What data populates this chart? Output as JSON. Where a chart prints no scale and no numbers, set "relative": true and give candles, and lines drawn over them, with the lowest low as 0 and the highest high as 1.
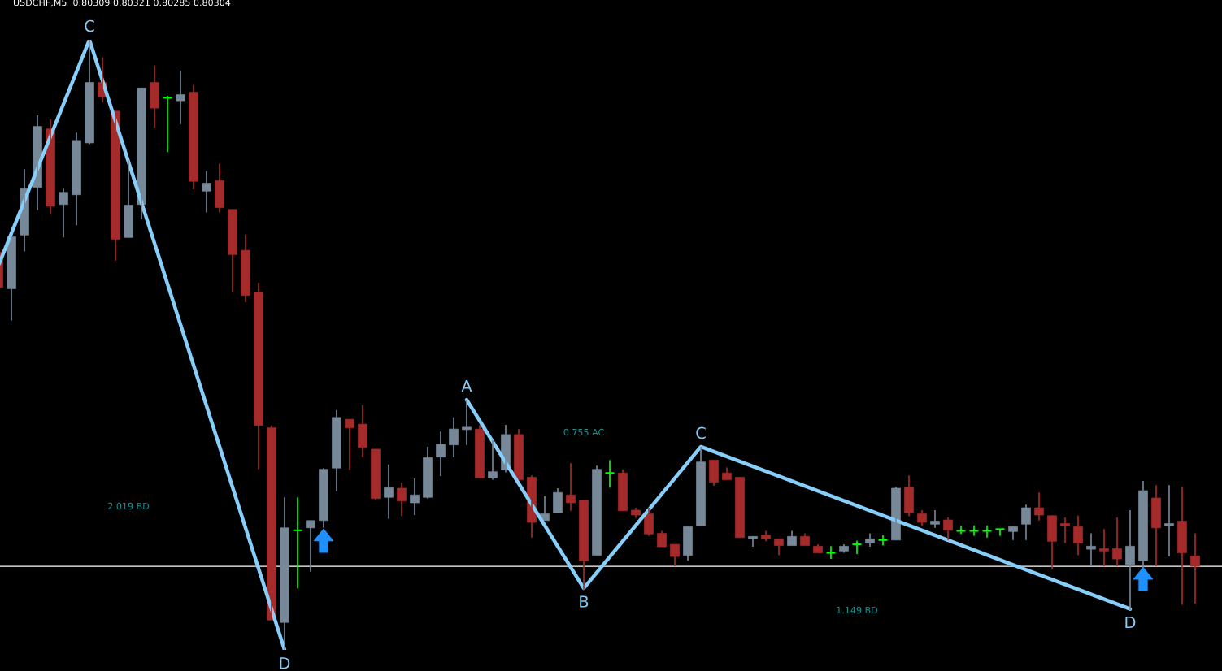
{
  "chart_data": {
    "type": "candlestick",
    "title": "USDCHF,M5  0.80309 0.80321 0.80285 0.80304",
    "relative": true,
    "categories": [
      null,
      null,
      null,
      null,
      null,
      null,
      null,
      null,
      null,
      null,
      null,
      null,
      null,
      null,
      null,
      null,
      null,
      null,
      null,
      null,
      null,
      null,
      null,
      null,
      null,
      null,
      null,
      null,
      null,
      null,
      null,
      null,
      null,
      null,
      null,
      null,
      null,
      null,
      null,
      null,
      null,
      null,
      null,
      null,
      null,
      null,
      null,
      null,
      null,
      null,
      null,
      null,
      null,
      null,
      null,
      null,
      null,
      null,
      null,
      null,
      null,
      null,
      null,
      null,
      null,
      null,
      null,
      null,
      null,
      null,
      null,
      null,
      null,
      null,
      null,
      null,
      null,
      null,
      null,
      null,
      null,
      null,
      null,
      null,
      null,
      null,
      null,
      null,
      null,
      null,
      null,
      null,
      null
    ],
    "ohlc": [
      [
        0.652,
        0.652,
        0.594,
        0.594
      ],
      [
        0.592,
        0.677,
        0.54,
        0.677
      ],
      [
        0.68,
        0.788,
        0.653,
        0.756
      ],
      [
        0.758,
        0.876,
        0.721,
        0.858
      ],
      [
        0.854,
        0.87,
        0.714,
        0.727
      ],
      [
        0.73,
        0.756,
        0.676,
        0.75
      ],
      [
        0.746,
        0.848,
        0.696,
        0.835
      ],
      [
        0.831,
        1.0,
        0.829,
        0.93
      ],
      [
        0.93,
        0.971,
        0.897,
        0.906
      ],
      [
        0.883,
        0.883,
        0.638,
        0.673
      ],
      [
        0.676,
        0.802,
        0.676,
        0.729
      ],
      [
        0.73,
        0.921,
        0.706,
        0.921
      ],
      [
        0.93,
        0.958,
        0.856,
        0.888
      ],
      [
        0.905,
        0.908,
        0.816,
        0.905
      ],
      [
        0.9,
        0.949,
        0.862,
        0.91
      ],
      [
        0.914,
        0.926,
        0.755,
        0.768
      ],
      [
        0.752,
        0.785,
        0.717,
        0.765
      ],
      [
        0.769,
        0.797,
        0.717,
        0.725
      ],
      [
        0.722,
        0.722,
        0.586,
        0.648
      ],
      [
        0.655,
        0.681,
        0.57,
        0.581
      ],
      [
        0.586,
        0.602,
        0.296,
        0.368
      ],
      [
        0.364,
        0.368,
        0.049,
        0.049
      ],
      [
        0.045,
        0.25,
        0.0,
        0.2
      ],
      [
        0.196,
        0.25,
        0.101,
        0.196
      ],
      [
        0.2,
        0.212,
        0.128,
        0.212
      ],
      [
        0.212,
        0.298,
        0.2,
        0.296
      ],
      [
        0.298,
        0.393,
        0.26,
        0.381
      ],
      [
        0.378,
        0.378,
        0.295,
        0.364
      ],
      [
        0.37,
        0.401,
        0.316,
        0.332
      ],
      [
        0.329,
        0.329,
        0.245,
        0.248
      ],
      [
        0.25,
        0.304,
        0.215,
        0.266
      ],
      [
        0.265,
        0.274,
        0.219,
        0.244
      ],
      [
        0.241,
        0.281,
        0.221,
        0.254
      ],
      [
        0.25,
        0.333,
        0.248,
        0.315
      ],
      [
        0.316,
        0.358,
        0.285,
        0.337
      ],
      [
        0.336,
        0.381,
        0.316,
        0.362
      ],
      [
        0.361,
        0.41,
        0.336,
        0.365
      ],
      [
        0.362,
        0.369,
        0.282,
        0.282
      ],
      [
        0.282,
        0.344,
        0.279,
        0.292
      ],
      [
        0.295,
        0.369,
        0.291,
        0.353
      ],
      [
        0.353,
        0.362,
        0.279,
        0.279
      ],
      [
        0.283,
        0.286,
        0.184,
        0.209
      ],
      [
        0.212,
        0.252,
        0.212,
        0.223
      ],
      [
        0.225,
        0.265,
        0.225,
        0.258
      ],
      [
        0.254,
        0.306,
        0.228,
        0.241
      ],
      [
        0.245,
        0.245,
        0.099,
        0.146
      ],
      [
        0.155,
        0.302,
        0.155,
        0.296
      ],
      [
        0.29,
        0.311,
        0.266,
        0.29
      ],
      [
        0.29,
        0.296,
        0.228,
        0.228
      ],
      [
        0.229,
        0.233,
        0.216,
        0.221
      ],
      [
        0.223,
        0.233,
        0.187,
        0.19
      ],
      [
        0.191,
        0.195,
        0.169,
        0.169
      ],
      [
        0.173,
        0.173,
        0.137,
        0.153
      ],
      [
        0.155,
        0.202,
        0.146,
        0.202
      ],
      [
        0.203,
        0.333,
        0.203,
        0.308
      ],
      [
        0.311,
        0.311,
        0.269,
        0.275
      ],
      [
        0.29,
        0.299,
        0.279,
        0.279
      ],
      [
        0.283,
        0.283,
        0.184,
        0.184
      ],
      [
        0.182,
        0.186,
        0.169,
        0.186
      ],
      [
        0.188,
        0.195,
        0.178,
        0.182
      ],
      [
        0.182,
        0.182,
        0.155,
        0.171
      ],
      [
        0.171,
        0.195,
        0.171,
        0.186
      ],
      [
        0.186,
        0.191,
        0.171,
        0.171
      ],
      [
        0.17,
        0.173,
        0.159,
        0.159
      ],
      [
        0.159,
        0.17,
        0.149,
        0.159
      ],
      [
        0.162,
        0.173,
        0.159,
        0.17
      ],
      [
        0.173,
        0.179,
        0.157,
        0.173
      ],
      [
        0.175,
        0.191,
        0.169,
        0.182
      ],
      [
        0.18,
        0.188,
        0.171,
        0.18
      ],
      [
        0.18,
        0.267,
        0.18,
        0.265
      ],
      [
        0.267,
        0.286,
        0.219,
        0.225
      ],
      [
        0.223,
        0.229,
        0.203,
        0.209
      ],
      [
        0.206,
        0.229,
        0.2,
        0.211
      ],
      [
        0.213,
        0.217,
        0.18,
        0.196
      ],
      [
        0.195,
        0.203,
        0.19,
        0.195
      ],
      [
        0.195,
        0.204,
        0.187,
        0.195
      ],
      [
        0.195,
        0.204,
        0.184,
        0.195
      ],
      [
        0.198,
        0.198,
        0.187,
        0.198
      ],
      [
        0.194,
        0.202,
        0.18,
        0.202
      ],
      [
        0.206,
        0.238,
        0.18,
        0.233
      ],
      [
        0.233,
        0.258,
        0.212,
        0.221
      ],
      [
        0.22,
        0.22,
        0.133,
        0.178
      ],
      [
        0.207,
        0.217,
        0.175,
        0.203
      ],
      [
        0.202,
        0.22,
        0.155,
        0.175
      ],
      [
        0.165,
        0.191,
        0.137,
        0.17
      ],
      [
        0.166,
        0.198,
        0.137,
        0.162
      ],
      [
        0.166,
        0.217,
        0.137,
        0.149
      ],
      [
        0.14,
        0.229,
        0.065,
        0.17
      ],
      [
        0.146,
        0.277,
        0.133,
        0.261
      ],
      [
        0.249,
        0.27,
        0.137,
        0.2
      ],
      [
        0.203,
        0.27,
        0.153,
        0.207
      ],
      [
        0.211,
        0.267,
        0.074,
        0.159
      ],
      [
        0.154,
        0.191,
        0.076,
        0.137
      ]
    ],
    "colors": [
      "#a52a2a",
      "#778899",
      "#778899",
      "#778899",
      "#a52a2a",
      "#778899",
      "#778899",
      "#778899",
      "#a52a2a",
      "#a52a2a",
      "#778899",
      "#778899",
      "#a52a2a",
      "#00ff00",
      "#778899",
      "#a52a2a",
      "#778899",
      "#a52a2a",
      "#a52a2a",
      "#a52a2a",
      "#a52a2a",
      "#a52a2a",
      "#778899",
      "#00ff00",
      "#778899",
      "#778899",
      "#778899",
      "#a52a2a",
      "#a52a2a",
      "#a52a2a",
      "#778899",
      "#a52a2a",
      "#778899",
      "#778899",
      "#778899",
      "#778899",
      "#778899",
      "#a52a2a",
      "#778899",
      "#778899",
      "#a52a2a",
      "#a52a2a",
      "#778899",
      "#778899",
      "#a52a2a",
      "#a52a2a",
      "#778899",
      "#00ff00",
      "#a52a2a",
      "#a52a2a",
      "#a52a2a",
      "#a52a2a",
      "#a52a2a",
      "#778899",
      "#778899",
      "#a52a2a",
      "#a52a2a",
      "#a52a2a",
      "#778899",
      "#a52a2a",
      "#a52a2a",
      "#778899",
      "#a52a2a",
      "#a52a2a",
      "#00ff00",
      "#778899",
      "#00ff00",
      "#778899",
      "#00ff00",
      "#778899",
      "#a52a2a",
      "#a52a2a",
      "#778899",
      "#a52a2a",
      "#00ff00",
      "#00ff00",
      "#00ff00",
      "#00ff00",
      "#778899",
      "#778899",
      "#a52a2a",
      "#a52a2a",
      "#a52a2a",
      "#a52a2a",
      "#778899",
      "#a52a2a",
      "#a52a2a",
      "#778899",
      "#778899",
      "#a52a2a",
      "#778899",
      "#a52a2a",
      "#a52a2a"
    ],
    "series": [
      {
        "type": "line",
        "color": "#87cefa",
        "values": [
          0.63,
          null,
          null,
          null,
          null,
          null,
          null,
          1.0,
          null,
          null,
          null,
          null,
          null,
          null,
          null,
          null,
          null,
          null,
          null,
          null,
          null,
          null,
          0.0,
          null,
          null,
          null,
          null,
          null,
          null,
          null,
          null,
          null,
          null,
          null,
          null,
          null,
          null,
          null,
          null,
          null,
          null,
          null,
          null,
          null,
          null,
          null,
          null,
          null,
          null,
          null,
          null,
          null,
          null,
          null,
          null,
          null,
          null,
          null,
          null,
          null,
          null,
          null,
          null,
          null,
          null,
          null,
          null,
          null,
          null,
          null,
          null,
          null,
          null,
          null,
          null,
          null,
          null,
          null,
          null,
          null,
          null,
          null,
          null,
          null,
          null,
          null,
          null,
          null,
          null,
          null,
          null,
          null,
          null
        ]
      },
      {
        "type": "line",
        "color": "#87cefa",
        "values": [
          null,
          null,
          null,
          null,
          null,
          null,
          null,
          null,
          null,
          null,
          null,
          null,
          null,
          null,
          null,
          null,
          null,
          null,
          null,
          null,
          null,
          null,
          null,
          null,
          null,
          null,
          null,
          null,
          null,
          null,
          null,
          null,
          null,
          null,
          null,
          null,
          0.41,
          null,
          null,
          null,
          null,
          null,
          null,
          null,
          null,
          0.101,
          null,
          null,
          null,
          null,
          null,
          null,
          null,
          null,
          0.333,
          null,
          null,
          null,
          null,
          null,
          null,
          null,
          null,
          null,
          null,
          null,
          null,
          null,
          null,
          null,
          null,
          null,
          null,
          null,
          null,
          null,
          null,
          null,
          null,
          null,
          null,
          null,
          null,
          null,
          null,
          null,
          null,
          0.067,
          null,
          null,
          null,
          null,
          null
        ]
      },
      {
        "type": "scatter",
        "color": "#1e90ff",
        "marker": "triangle",
        "values": [
          null,
          null,
          null,
          null,
          null,
          null,
          null,
          null,
          null,
          null,
          null,
          null,
          null,
          null,
          null,
          null,
          null,
          null,
          null,
          null,
          null,
          null,
          null,
          null,
          null,
          0.179,
          null,
          null,
          null,
          null,
          null,
          null,
          null,
          null,
          null,
          null,
          null,
          null,
          null,
          null,
          null,
          null,
          null,
          null,
          null,
          null,
          null,
          null,
          null,
          null,
          null,
          null,
          null,
          null,
          null,
          null,
          null,
          null,
          null,
          null,
          null,
          null,
          null,
          null,
          null,
          null,
          null,
          null,
          null,
          null,
          null,
          null,
          null,
          null,
          null,
          null,
          null,
          null,
          null,
          null,
          null,
          null,
          null,
          null,
          null,
          null,
          null,
          null,
          0.116,
          null,
          null,
          null,
          null
        ]
      }
    ],
    "ref_lines": [
      {
        "axis": "y",
        "value": 0.137,
        "color": "#ffffff"
      }
    ],
    "annotations": [
      {
        "text": "C",
        "y": 1.0
      },
      {
        "text": "D",
        "y": 0.0
      },
      {
        "text": "A",
        "y": 0.41
      },
      {
        "text": "B",
        "y": 0.101
      },
      {
        "text": "C",
        "y": 0.333
      },
      {
        "text": "D",
        "y": 0.067
      },
      "2.019 BD",
      "0.755 AC",
      "1.149 BD"
    ]
  }
}
